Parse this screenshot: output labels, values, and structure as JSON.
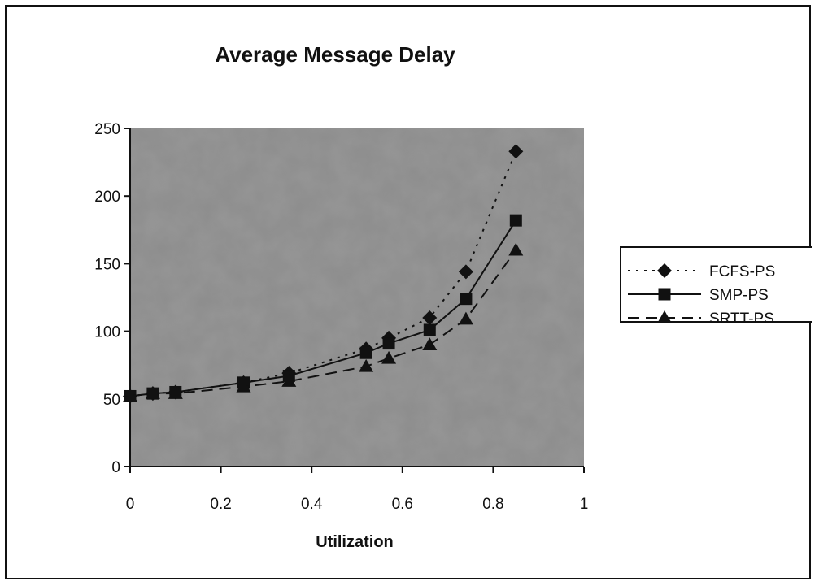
{
  "chart_data": {
    "type": "line",
    "title": "Average Message Delay",
    "xlabel": "Utilization",
    "ylabel": "",
    "xlim": [
      0,
      1
    ],
    "ylim": [
      0,
      250
    ],
    "x_ticks": [
      "0",
      "0.2",
      "0.4",
      "0.6",
      "0.8",
      "1"
    ],
    "y_ticks": [
      "0",
      "50",
      "100",
      "150",
      "200",
      "250"
    ],
    "x_tick_values": [
      0,
      0.2,
      0.4,
      0.6,
      0.8,
      1
    ],
    "y_tick_values": [
      0,
      50,
      100,
      150,
      200,
      250
    ],
    "grid": false,
    "legend_position": "right",
    "plot_background": "#8c8c8c",
    "series": [
      {
        "name": "FCFS-PS",
        "marker": "diamond",
        "line_style": "dotted",
        "color": "#111111",
        "x": [
          0,
          0.05,
          0.1,
          0.25,
          0.35,
          0.52,
          0.57,
          0.66,
          0.74,
          0.85
        ],
        "y": [
          52,
          54,
          55,
          62,
          69,
          87,
          95,
          110,
          144,
          233
        ]
      },
      {
        "name": "SMP-PS",
        "marker": "square",
        "line_style": "solid",
        "color": "#111111",
        "x": [
          0,
          0.05,
          0.1,
          0.25,
          0.35,
          0.52,
          0.57,
          0.66,
          0.74,
          0.85
        ],
        "y": [
          52,
          54,
          55,
          62,
          67,
          84,
          91,
          101,
          124,
          182
        ]
      },
      {
        "name": "SRTT-PS",
        "marker": "triangle",
        "line_style": "dashed",
        "color": "#111111",
        "x": [
          0,
          0.05,
          0.1,
          0.25,
          0.35,
          0.52,
          0.57,
          0.66,
          0.74,
          0.85
        ],
        "y": [
          52,
          54,
          54,
          59,
          63,
          74,
          80,
          90,
          109,
          160
        ]
      }
    ]
  }
}
